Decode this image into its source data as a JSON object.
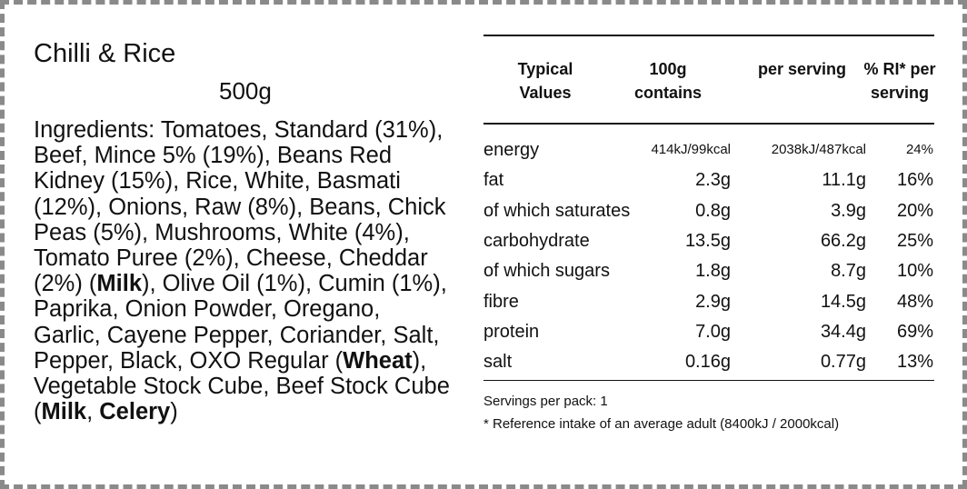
{
  "product": {
    "name": "Chilli & Rice",
    "weight": "500g"
  },
  "ingredients": [
    {
      "text": "Ingredients: Tomatoes, Standard (31%), Beef, Mince 5% (19%), Beans Red Kidney (15%), Rice, White, Basmati (12%), Onions, Raw (8%), Beans, Chick Peas (5%), Mushrooms, White (4%), Tomato Puree (2%), Cheese, Cheddar (2%) ("
    },
    {
      "text": "Milk",
      "bold": true
    },
    {
      "text": "), Olive Oil (1%), Cumin (1%), Paprika, Onion Powder, Oregano, Garlic, Cayene Pepper, Coriander, Salt, Pepper, Black, OXO Regular ("
    },
    {
      "text": "Wheat",
      "bold": true
    },
    {
      "text": "), Vegetable Stock Cube, Beef Stock Cube ("
    },
    {
      "text": "Milk",
      "bold": true
    },
    {
      "text": ", "
    },
    {
      "text": "Celery",
      "bold": true
    },
    {
      "text": ")"
    }
  ],
  "table": {
    "header": [
      "Typical Values",
      "100g contains",
      "per serving",
      "% RI* per serving"
    ],
    "rows": [
      [
        "energy",
        "414kJ/99kcal",
        "2038kJ/487kcal",
        "24%"
      ],
      [
        "fat",
        "2.3g",
        "11.1g",
        "16%"
      ],
      [
        "of which saturates",
        "0.8g",
        "3.9g",
        "20%"
      ],
      [
        "carbohydrate",
        "13.5g",
        "66.2g",
        "25%"
      ],
      [
        "of which sugars",
        "1.8g",
        "8.7g",
        "10%"
      ],
      [
        "fibre",
        "2.9g",
        "14.5g",
        "48%"
      ],
      [
        "protein",
        "7.0g",
        "34.4g",
        "69%"
      ],
      [
        "salt",
        "0.16g",
        "0.77g",
        "13%"
      ]
    ],
    "footnotes": [
      "Servings per pack: 1",
      "* Reference intake of an average adult (8400kJ / 2000kcal)"
    ]
  }
}
